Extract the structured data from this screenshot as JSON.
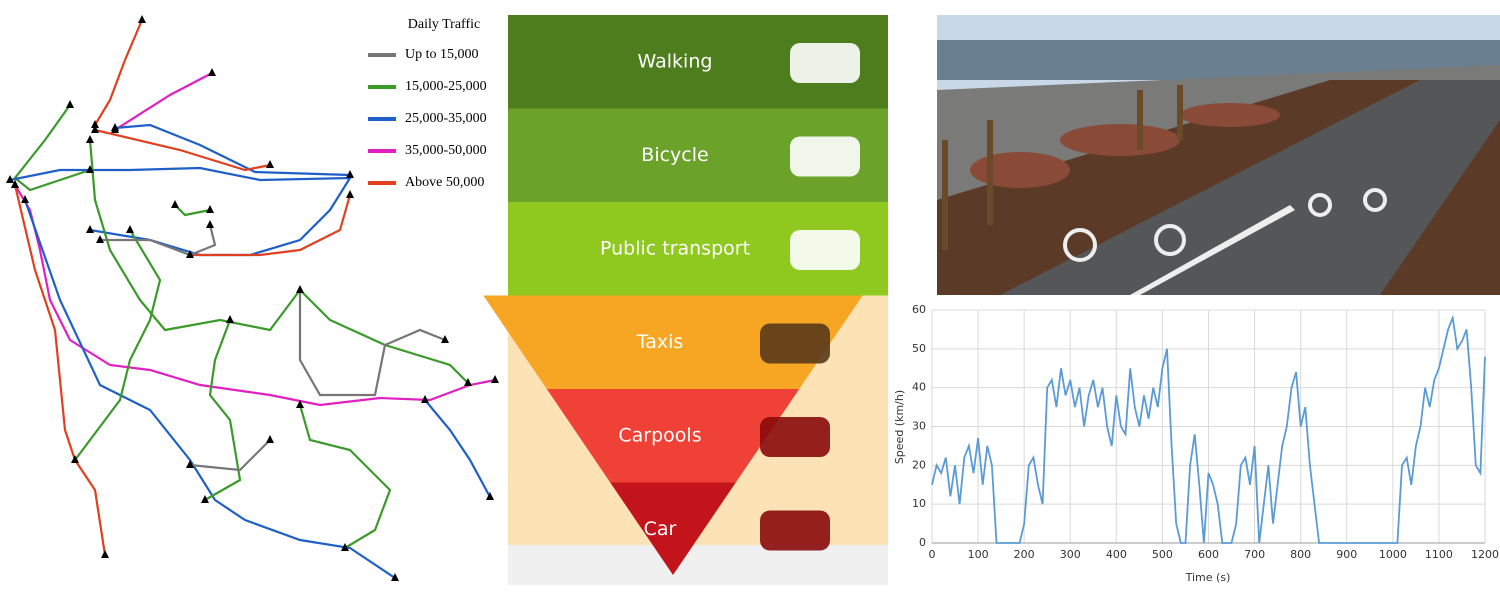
{
  "map": {
    "legend_title": "Daily Traffic",
    "legend": [
      {
        "label": "Up to 15,000",
        "color": "#777777"
      },
      {
        "label": "15,000-25,000",
        "color": "#3a9a2a"
      },
      {
        "label": "25,000-35,000",
        "color": "#1f5fc8"
      },
      {
        "label": "35,000-50,000",
        "color": "#e020c0"
      },
      {
        "label": "Above 50,000",
        "color": "#e04020"
      }
    ]
  },
  "pyramid": {
    "levels": [
      {
        "label": "Walking",
        "color": "#4e7d1e"
      },
      {
        "label": "Bicycle",
        "color": "#6aa22a"
      },
      {
        "label": "Public transport",
        "color": "#8fc81e"
      },
      {
        "label": "Taxis",
        "color": "#f6a623"
      },
      {
        "label": "Carpools",
        "color": "#ef4136"
      },
      {
        "label": "Car",
        "color": "#c3141c"
      }
    ]
  },
  "chart_data": {
    "type": "line",
    "xlabel": "Time (s)",
    "ylabel": "Speed (km/h)",
    "xlim": [
      0,
      1200
    ],
    "ylim": [
      0,
      60
    ],
    "xticks": [
      0,
      100,
      200,
      300,
      400,
      500,
      600,
      700,
      800,
      900,
      1000,
      1100,
      1200
    ],
    "yticks": [
      0,
      10,
      20,
      30,
      40,
      50,
      60
    ],
    "grid": true,
    "x": [
      0,
      10,
      20,
      30,
      40,
      50,
      60,
      70,
      80,
      90,
      100,
      110,
      120,
      130,
      140,
      150,
      160,
      170,
      180,
      190,
      200,
      210,
      220,
      230,
      240,
      250,
      260,
      270,
      280,
      290,
      300,
      310,
      320,
      330,
      340,
      350,
      360,
      370,
      380,
      390,
      400,
      410,
      420,
      430,
      440,
      450,
      460,
      470,
      480,
      490,
      500,
      510,
      520,
      530,
      540,
      550,
      560,
      570,
      580,
      590,
      600,
      610,
      620,
      630,
      640,
      650,
      660,
      670,
      680,
      690,
      700,
      710,
      720,
      730,
      740,
      750,
      760,
      770,
      780,
      790,
      800,
      810,
      820,
      830,
      840,
      850,
      860,
      870,
      880,
      890,
      900,
      910,
      920,
      930,
      940,
      950,
      960,
      970,
      980,
      990,
      1000,
      1010,
      1020,
      1030,
      1040,
      1050,
      1060,
      1070,
      1080,
      1090,
      1100,
      1110,
      1120,
      1130,
      1140,
      1150,
      1160,
      1170,
      1180,
      1190,
      1200
    ],
    "series": [
      {
        "name": "Speed",
        "color": "#5b9bd5",
        "values": [
          15,
          20,
          18,
          22,
          12,
          20,
          10,
          22,
          25,
          18,
          27,
          15,
          25,
          20,
          0,
          0,
          0,
          0,
          0,
          0,
          5,
          20,
          22,
          15,
          10,
          40,
          42,
          35,
          45,
          38,
          42,
          35,
          40,
          30,
          38,
          42,
          35,
          40,
          30,
          25,
          38,
          30,
          28,
          45,
          35,
          30,
          38,
          32,
          40,
          35,
          45,
          50,
          25,
          5,
          0,
          0,
          20,
          28,
          15,
          0,
          18,
          15,
          10,
          0,
          0,
          0,
          5,
          20,
          22,
          15,
          25,
          0,
          10,
          20,
          5,
          15,
          25,
          30,
          40,
          44,
          30,
          35,
          20,
          10,
          0,
          0,
          0,
          0,
          0,
          0,
          0,
          0,
          0,
          0,
          0,
          0,
          0,
          0,
          0,
          0,
          0,
          0,
          20,
          22,
          15,
          25,
          30,
          40,
          35,
          42,
          45,
          50,
          55,
          58,
          50,
          52,
          55,
          40,
          20,
          18,
          48
        ]
      }
    ]
  }
}
